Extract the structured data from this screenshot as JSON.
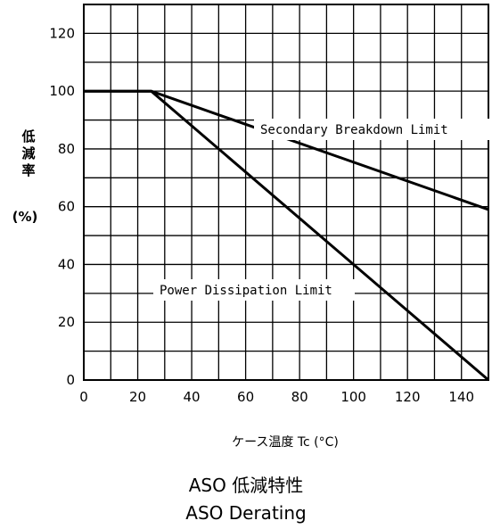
{
  "chart_data": {
    "type": "line",
    "title": "ASO 低減特性",
    "subtitle": "ASO Derating",
    "xlabel": "ケース温度 Tc (°C)",
    "ylabel_chars": [
      "低",
      "減",
      "率"
    ],
    "ylabel_unit": "(%)",
    "xlim": [
      0,
      150
    ],
    "ylim": [
      0,
      130
    ],
    "x_ticks": [
      0,
      20,
      40,
      60,
      80,
      100,
      120,
      140
    ],
    "x_tick_labels": [
      "0",
      "20",
      "40",
      "60",
      "80",
      "100",
      "120",
      "140"
    ],
    "y_ticks": [
      0,
      20,
      40,
      60,
      80,
      100,
      120
    ],
    "y_tick_labels": [
      "0",
      "20",
      "40",
      "60",
      "80",
      "100",
      "120"
    ],
    "grid": true,
    "series": [
      {
        "name": "Secondary Breakdown Limit",
        "x": [
          0,
          25,
          150
        ],
        "y": [
          100,
          100,
          59
        ]
      },
      {
        "name": "Power Dissipation Limit",
        "x": [
          0,
          25,
          150
        ],
        "y": [
          100,
          100,
          0
        ]
      }
    ]
  }
}
